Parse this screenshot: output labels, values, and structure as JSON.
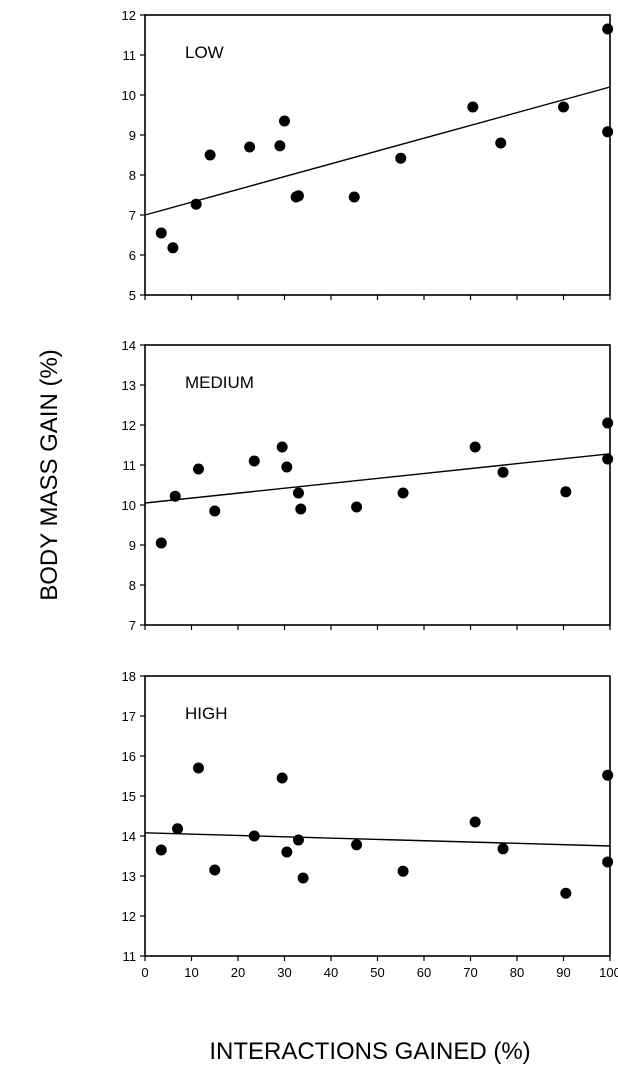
{
  "chart_data": {
    "type": "scatter",
    "xlabel": "INTERACTIONS GAINED (%)",
    "ylabel": "BODY MASS GAIN (%)",
    "xlim": [
      0,
      100
    ],
    "xticks": [
      0,
      10,
      20,
      30,
      40,
      50,
      60,
      70,
      80,
      90,
      100
    ],
    "grid": false,
    "panels": [
      {
        "label": "LOW",
        "ylim": [
          5,
          12
        ],
        "yticks": [
          5,
          6,
          7,
          8,
          9,
          10,
          11,
          12
        ],
        "trendline": [
          [
            0,
            7.0
          ],
          [
            100,
            10.2
          ]
        ],
        "points": [
          [
            3.5,
            6.55
          ],
          [
            6,
            6.18
          ],
          [
            11,
            7.27
          ],
          [
            14,
            8.5
          ],
          [
            22.5,
            8.7
          ],
          [
            29,
            8.73
          ],
          [
            30,
            9.35
          ],
          [
            32.5,
            7.45
          ],
          [
            33,
            7.48
          ],
          [
            45,
            7.45
          ],
          [
            55,
            8.42
          ],
          [
            70.5,
            9.7
          ],
          [
            76.5,
            8.8
          ],
          [
            90,
            9.7
          ],
          [
            99.5,
            11.65
          ],
          [
            99.5,
            9.08
          ]
        ]
      },
      {
        "label": "MEDIUM",
        "ylim": [
          7,
          14
        ],
        "yticks": [
          7,
          8,
          9,
          10,
          11,
          12,
          13,
          14
        ],
        "trendline": [
          [
            0,
            10.05
          ],
          [
            100,
            11.28
          ]
        ],
        "points": [
          [
            3.5,
            9.05
          ],
          [
            6.5,
            10.22
          ],
          [
            11.5,
            10.9
          ],
          [
            15,
            9.85
          ],
          [
            23.5,
            11.1
          ],
          [
            29.5,
            11.45
          ],
          [
            30.5,
            10.95
          ],
          [
            33,
            10.3
          ],
          [
            33.5,
            9.9
          ],
          [
            45.5,
            9.95
          ],
          [
            55.5,
            10.3
          ],
          [
            71,
            11.45
          ],
          [
            77,
            10.82
          ],
          [
            90.5,
            10.33
          ],
          [
            99.5,
            12.05
          ],
          [
            99.5,
            11.15
          ]
        ]
      },
      {
        "label": "HIGH",
        "ylim": [
          11,
          18
        ],
        "yticks": [
          11,
          12,
          13,
          14,
          15,
          16,
          17,
          18
        ],
        "trendline": [
          [
            0,
            14.08
          ],
          [
            100,
            13.75
          ]
        ],
        "points": [
          [
            3.5,
            13.65
          ],
          [
            7,
            14.18
          ],
          [
            11.5,
            15.7
          ],
          [
            15,
            13.15
          ],
          [
            23.5,
            14.0
          ],
          [
            29.5,
            15.45
          ],
          [
            30.5,
            13.6
          ],
          [
            33,
            13.9
          ],
          [
            34,
            12.95
          ],
          [
            45.5,
            13.78
          ],
          [
            55.5,
            13.12
          ],
          [
            71,
            14.35
          ],
          [
            77,
            13.68
          ],
          [
            90.5,
            12.57
          ],
          [
            99.5,
            15.52
          ],
          [
            99.5,
            13.35
          ]
        ]
      }
    ]
  }
}
